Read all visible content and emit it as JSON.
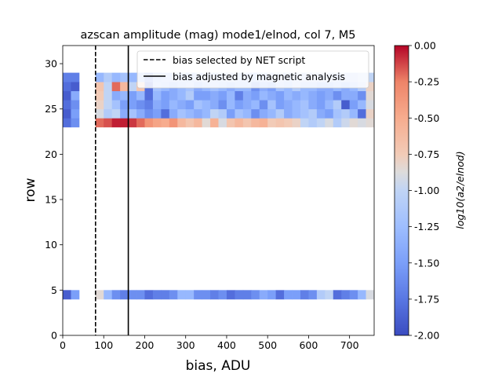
{
  "chart_data": {
    "type": "heatmap",
    "title": "azscan amplitude (mag) mode1/elnod, col 7, M5",
    "xlabel": "bias, ADU",
    "ylabel": "row",
    "xlim": [
      0,
      760
    ],
    "ylim": [
      0,
      32
    ],
    "x_ticks": [
      "0",
      "100",
      "200",
      "300",
      "400",
      "500",
      "600",
      "700"
    ],
    "y_ticks": [
      "0",
      "5",
      "10",
      "15",
      "20",
      "25",
      "30"
    ],
    "bin_width": 20,
    "colormap": "coolwarm",
    "colorbar": {
      "label": "log10(a2/elnod)",
      "min": -2.0,
      "max": 0.0,
      "ticks": [
        "0.00",
        "-0.25",
        "-0.50",
        "-0.75",
        "-1.00",
        "-1.25",
        "-1.50",
        "-1.75",
        "-2.00"
      ]
    },
    "vlines": [
      {
        "x": 80,
        "style": "dashed",
        "color": "#000000",
        "label": "bias selected by NET script"
      },
      {
        "x": 160,
        "style": "solid",
        "color": "#000000",
        "label": "bias adjusted by magnetic analysis"
      }
    ],
    "legend_position": "top-right",
    "grid": false,
    "rows": [
      {
        "row": 4,
        "values": [
          -1.9,
          -1.5,
          null,
          null,
          -0.85,
          -1.3,
          -1.6,
          -1.7,
          -1.6,
          -1.6,
          -1.8,
          -1.7,
          -1.7,
          -1.6,
          -1.3,
          -1.3,
          -1.6,
          -1.6,
          -1.7,
          -1.6,
          -1.8,
          -1.7,
          -1.7,
          -1.6,
          -1.4,
          -1.5,
          -1.8,
          -1.5,
          -1.5,
          -1.7,
          -1.6,
          -1.1,
          -1.0,
          -1.8,
          -1.7,
          -1.6,
          -1.3,
          -0.9
        ]
      },
      {
        "row": 23,
        "values": [
          -1.8,
          -1.6,
          null,
          null,
          -0.2,
          -0.15,
          -0.05,
          -0.05,
          -0.1,
          -0.2,
          -0.35,
          -0.45,
          -0.5,
          -0.35,
          -0.6,
          -0.7,
          -0.6,
          -0.85,
          -0.55,
          -0.9,
          -0.7,
          -0.6,
          -0.7,
          -0.6,
          -0.55,
          -0.75,
          -0.7,
          -0.75,
          -0.8,
          -1.0,
          -1.1,
          -1.0,
          -0.9,
          -1.1,
          -0.95,
          -0.85,
          -0.9,
          -0.85
        ]
      },
      {
        "row": 24,
        "values": [
          -1.9,
          -1.5,
          null,
          null,
          -0.9,
          -1.1,
          -1.0,
          -1.4,
          -1.2,
          -1.4,
          -1.6,
          -1.5,
          -1.8,
          -1.4,
          -1.2,
          -1.3,
          -1.4,
          -1.3,
          -1.0,
          -1.1,
          -1.5,
          -1.2,
          -1.3,
          -1.6,
          -1.4,
          -1.3,
          -1.1,
          -1.4,
          -1.3,
          -1.2,
          -1.1,
          -1.4,
          -1.5,
          -1.2,
          -1.1,
          -1.3,
          -1.8,
          -0.8
        ]
      },
      {
        "row": 25,
        "values": [
          -1.8,
          -1.6,
          null,
          null,
          -0.8,
          -1.0,
          -1.2,
          -1.5,
          -1.5,
          -1.6,
          -1.7,
          -1.4,
          -1.5,
          -1.3,
          -1.4,
          -1.5,
          -1.2,
          -1.3,
          -1.4,
          -1.6,
          -1.3,
          -1.5,
          -1.4,
          -1.3,
          -1.6,
          -1.2,
          -1.5,
          -1.4,
          -1.3,
          -1.2,
          -1.4,
          -1.5,
          -1.3,
          -1.1,
          -1.9,
          -1.5,
          -1.3,
          -0.9
        ]
      },
      {
        "row": 26,
        "values": [
          -1.9,
          -1.4,
          null,
          null,
          -0.75,
          -1.0,
          -1.4,
          -1.3,
          -1.5,
          -1.3,
          -1.8,
          -1.3,
          -1.5,
          -1.4,
          -1.3,
          -1.1,
          -1.5,
          -1.5,
          -1.4,
          -1.5,
          -1.3,
          -1.7,
          -1.4,
          -1.5,
          -1.3,
          -1.4,
          -1.5,
          -1.3,
          -1.4,
          -1.3,
          -1.4,
          -1.5,
          -1.4,
          -1.6,
          -1.4,
          -1.4,
          -1.6,
          -0.85
        ]
      },
      {
        "row": 27,
        "values": [
          -1.8,
          -1.9,
          null,
          null,
          -0.7,
          -1.0,
          -0.2,
          -0.6,
          -1.0,
          -0.7,
          -1.8,
          -1.2,
          -1.3,
          -1.4,
          -1.3,
          -1.2,
          -1.4,
          -1.3,
          -1.2,
          -1.3,
          -1.4,
          -1.3,
          -1.3,
          -1.6,
          -1.4,
          -1.5,
          -1.2,
          -1.3,
          -1.1,
          -1.3,
          -1.3,
          -1.4,
          -1.4,
          -1.3,
          -1.4,
          -1.3,
          -1.1,
          -0.8
        ]
      },
      {
        "row": 28,
        "values": [
          -1.7,
          -1.7,
          null,
          null,
          -1.3,
          -1.1,
          -1.3,
          -1.2,
          -1.3,
          -1.3,
          -1.6,
          -1.3,
          -1.2,
          -1.2,
          -1.2,
          -1.3,
          -1.2,
          -1.1,
          -1.2,
          -1.2,
          -1.1,
          -1.2,
          -1.2,
          -1.3,
          -1.2,
          -1.1,
          -1.1,
          -1.2,
          -1.1,
          -1.1,
          -1.1,
          -1.1,
          -1.1,
          -1.2,
          -1.1,
          -1.1,
          -1.0,
          -1.0
        ]
      }
    ]
  }
}
